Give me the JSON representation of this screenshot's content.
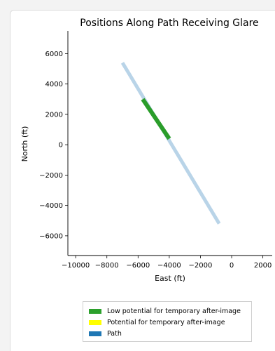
{
  "chart_data": {
    "type": "line",
    "title": "Positions Along Path Receiving Glare",
    "xlabel": "East (ft)",
    "ylabel": "North (ft)",
    "xlim": [
      -10500,
      2600
    ],
    "ylim": [
      -7300,
      7500
    ],
    "xticks": [
      -10000,
      -8000,
      -6000,
      -4000,
      -2000,
      0,
      2000
    ],
    "xtick_labels": [
      "−10000",
      "−8000",
      "−6000",
      "−4000",
      "−2000",
      "0",
      "2000"
    ],
    "yticks": [
      -6000,
      -4000,
      -2000,
      0,
      2000,
      4000,
      6000
    ],
    "ytick_labels": [
      "−6000",
      "−4000",
      "−2000",
      "0",
      "2000",
      "4000",
      "6000"
    ],
    "grid": false,
    "legend_placement": "bottom-center",
    "series": [
      {
        "name": "Path",
        "color": "#b9d4e8",
        "x": [
          -7000,
          -800
        ],
        "y": [
          5400,
          -5200
        ]
      },
      {
        "name": "Low potential for temporary after-image",
        "color": "#2a9d2a",
        "x": [
          -5700,
          -4000
        ],
        "y": [
          3000,
          400
        ]
      },
      {
        "name": "Potential for temporary after-image",
        "color": "#ffff00",
        "x": [],
        "y": []
      }
    ],
    "legend": [
      {
        "label": "Low potential for temporary after-image",
        "color": "#2ca02c"
      },
      {
        "label": "Potential for temporary after-image",
        "color": "#ffff00"
      },
      {
        "label": "Path",
        "color": "#1f77b4"
      }
    ]
  }
}
